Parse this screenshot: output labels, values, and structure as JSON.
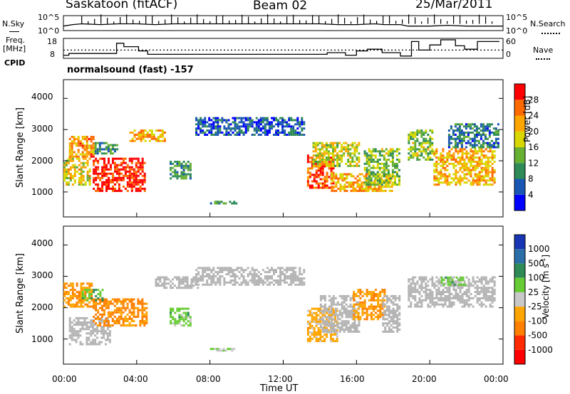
{
  "header": {
    "station": "Saskatoon (fitACF)",
    "beam": "Beam 02",
    "date": "25/Mar/2011"
  },
  "aux_labels": {
    "nsky": "N.Sky",
    "nsearch": "N.Search",
    "freq_line1": "Freq.",
    "freq_line2": "[MHz]",
    "nave": "Nave",
    "cpid": "CPID",
    "cpid_value": "normalsound (fast) -157",
    "noise_ticks_left": [
      "10^5",
      "10^0"
    ],
    "noise_ticks_right": [
      "10^5",
      "10^0"
    ],
    "freq_ticks": [
      "18",
      "8"
    ],
    "nave_ticks": [
      "60",
      "0"
    ]
  },
  "colors": {
    "power": [
      "#0000ff",
      "#1a56b3",
      "#2e8b57",
      "#66b032",
      "#d8d800",
      "#ffa500",
      "#ff6a00",
      "#ff0000"
    ],
    "velocity": [
      "#1836b4",
      "#2a6fa8",
      "#2e8b57",
      "#66cc33",
      "#c8c8c8",
      "#ffa500",
      "#ff7f00",
      "#ff2a00",
      "#ff0000"
    ],
    "ground_scatter": "#b4b4b4"
  },
  "chart_data": [
    {
      "type": "line",
      "name": "noise",
      "x_unit": "UT hours",
      "xlim": [
        0,
        24
      ],
      "series": [
        {
          "name": "N.Sky",
          "x": [
            0,
            0.5,
            1,
            2,
            3,
            4,
            5,
            6,
            7,
            8,
            9,
            10,
            11,
            12,
            13,
            14,
            15,
            16,
            17,
            17.5,
            18,
            18.4,
            18.8,
            19,
            20,
            21,
            22,
            23,
            24
          ],
          "values": [
            0.3,
            0.4,
            0.45,
            0.4,
            0.45,
            0.45,
            0.4,
            0.45,
            0.45,
            0.45,
            0.45,
            0.45,
            0.45,
            0.45,
            0.45,
            0.45,
            0.4,
            0.4,
            0.45,
            0.4,
            0.4,
            0.4,
            0.3,
            0.3,
            0.3,
            0.35,
            0.3,
            0.3,
            0.3
          ]
        }
      ]
    },
    {
      "type": "line",
      "name": "freq-nave",
      "x_unit": "UT hours",
      "xlim": [
        0,
        24
      ],
      "series": [
        {
          "name": "Freq.",
          "ylim": [
            8,
            18
          ],
          "x": [
            0,
            0.3,
            0.3,
            2.9,
            2.9,
            3.3,
            3.3,
            4.1,
            4.1,
            4.6,
            4.6,
            14.4,
            14.4,
            15.4,
            15.4,
            16.0,
            16.0,
            16.6,
            16.6,
            17.4,
            17.4,
            18.4,
            18.4,
            19.0,
            19.0,
            19.4,
            19.4,
            20.0,
            20.0,
            20.6,
            20.6,
            21.4,
            21.4,
            21.9,
            21.9,
            22.6,
            22.6,
            23.8
          ],
          "values": [
            9,
            9,
            10,
            10,
            16,
            16,
            14,
            14,
            11.5,
            11.5,
            9.5,
            9.5,
            10.5,
            10.5,
            9,
            9,
            11.5,
            11.5,
            12.5,
            12.5,
            10.5,
            10.5,
            8.5,
            8.5,
            17,
            17,
            12,
            12,
            15,
            15,
            18,
            18,
            14.5,
            14.5,
            12.5,
            12.5,
            17,
            17
          ]
        },
        {
          "name": "Nave",
          "level": 12
        }
      ]
    },
    {
      "type": "heatmap",
      "name": "power",
      "title": "Power [dB]",
      "ylabel": "Slant Range [km]",
      "yticks": [
        "1000",
        "2000",
        "3000",
        "4000"
      ],
      "colorbar_ticks": [
        "4",
        "8",
        "12",
        "16",
        "20",
        "24",
        "28"
      ],
      "clim": [
        0,
        30
      ],
      "regions": [
        {
          "t0": 0.0,
          "t1": 1.5,
          "r0": 1200,
          "r1": 2100,
          "v": 18
        },
        {
          "t0": 0.3,
          "t1": 1.7,
          "r0": 2100,
          "r1": 2800,
          "v": 22
        },
        {
          "t0": 1.6,
          "t1": 4.5,
          "r0": 1000,
          "r1": 2100,
          "v": 28
        },
        {
          "t0": 1.7,
          "t1": 3.0,
          "r0": 2200,
          "r1": 2600,
          "v": 10
        },
        {
          "t0": 3.6,
          "t1": 5.6,
          "r0": 2600,
          "r1": 3000,
          "v": 20
        },
        {
          "t0": 5.8,
          "t1": 7.0,
          "r0": 1400,
          "r1": 2000,
          "v": 10
        },
        {
          "t0": 7.2,
          "t1": 13.2,
          "r0": 2800,
          "r1": 3400,
          "v": 6
        },
        {
          "t0": 8.0,
          "t1": 9.5,
          "r0": 600,
          "r1": 700,
          "v": 10
        },
        {
          "t0": 13.3,
          "t1": 14.8,
          "r0": 1100,
          "r1": 2200,
          "v": 26
        },
        {
          "t0": 13.6,
          "t1": 16.2,
          "r0": 1800,
          "r1": 2600,
          "v": 16
        },
        {
          "t0": 14.6,
          "t1": 18.0,
          "r0": 1000,
          "r1": 1600,
          "v": 20
        },
        {
          "t0": 16.4,
          "t1": 18.4,
          "r0": 1200,
          "r1": 2400,
          "v": 14
        },
        {
          "t0": 18.8,
          "t1": 20.2,
          "r0": 2000,
          "r1": 3000,
          "v": 14
        },
        {
          "t0": 20.2,
          "t1": 23.6,
          "r0": 1200,
          "r1": 2400,
          "v": 20
        },
        {
          "t0": 21.0,
          "t1": 23.8,
          "r0": 2400,
          "r1": 3200,
          "v": 8
        }
      ]
    },
    {
      "type": "heatmap",
      "name": "velocity",
      "title": "Velocity",
      "unit": "[m s",
      "unit_sup": "-1",
      "unit_close": "]",
      "ylabel": "Slant Range [km]",
      "yticks": [
        "1000",
        "2000",
        "3000",
        "4000"
      ],
      "colorbar_ticks": [
        "1000",
        "500",
        "100",
        "25",
        "-25",
        "-100",
        "-500",
        "-1000"
      ],
      "clim": [
        -1000,
        1000
      ],
      "regions": [
        {
          "t0": 0.0,
          "t1": 1.6,
          "r0": 2000,
          "r1": 2800,
          "v": -300,
          "g": false
        },
        {
          "t0": 0.3,
          "t1": 2.6,
          "r0": 800,
          "r1": 1700,
          "v": 0,
          "g": true
        },
        {
          "t0": 1.6,
          "t1": 4.6,
          "r0": 1400,
          "r1": 2300,
          "v": -400,
          "g": false
        },
        {
          "t0": 1.0,
          "t1": 2.2,
          "r0": 2200,
          "r1": 2600,
          "v": 300,
          "g": false
        },
        {
          "t0": 5.8,
          "t1": 7.0,
          "r0": 1400,
          "r1": 2000,
          "v": 200,
          "g": false
        },
        {
          "t0": 5.0,
          "t1": 7.4,
          "r0": 2600,
          "r1": 3000,
          "v": 0,
          "g": true
        },
        {
          "t0": 7.2,
          "t1": 13.2,
          "r0": 2700,
          "r1": 3300,
          "v": 0,
          "g": true
        },
        {
          "t0": 8.0,
          "t1": 9.5,
          "r0": 600,
          "r1": 700,
          "v": 80,
          "g": false
        },
        {
          "t0": 13.3,
          "t1": 15.0,
          "r0": 900,
          "r1": 2000,
          "v": -200,
          "g": false
        },
        {
          "t0": 14.0,
          "t1": 16.2,
          "r0": 1200,
          "r1": 2400,
          "v": 0,
          "g": true
        },
        {
          "t0": 15.8,
          "t1": 17.6,
          "r0": 1600,
          "r1": 2600,
          "v": -300,
          "g": false
        },
        {
          "t0": 17.4,
          "t1": 18.4,
          "r0": 1200,
          "r1": 2400,
          "v": 0,
          "g": true
        },
        {
          "t0": 18.8,
          "t1": 23.6,
          "r0": 2000,
          "r1": 3000,
          "v": 0,
          "g": true
        },
        {
          "t0": 20.6,
          "t1": 22.0,
          "r0": 2700,
          "r1": 3000,
          "v": 200,
          "g": false
        }
      ]
    }
  ],
  "x_axis": {
    "label": "Time UT",
    "ticks": [
      "00:00",
      "04:00",
      "08:00",
      "12:00",
      "16:00",
      "20:00",
      "00:00"
    ]
  }
}
